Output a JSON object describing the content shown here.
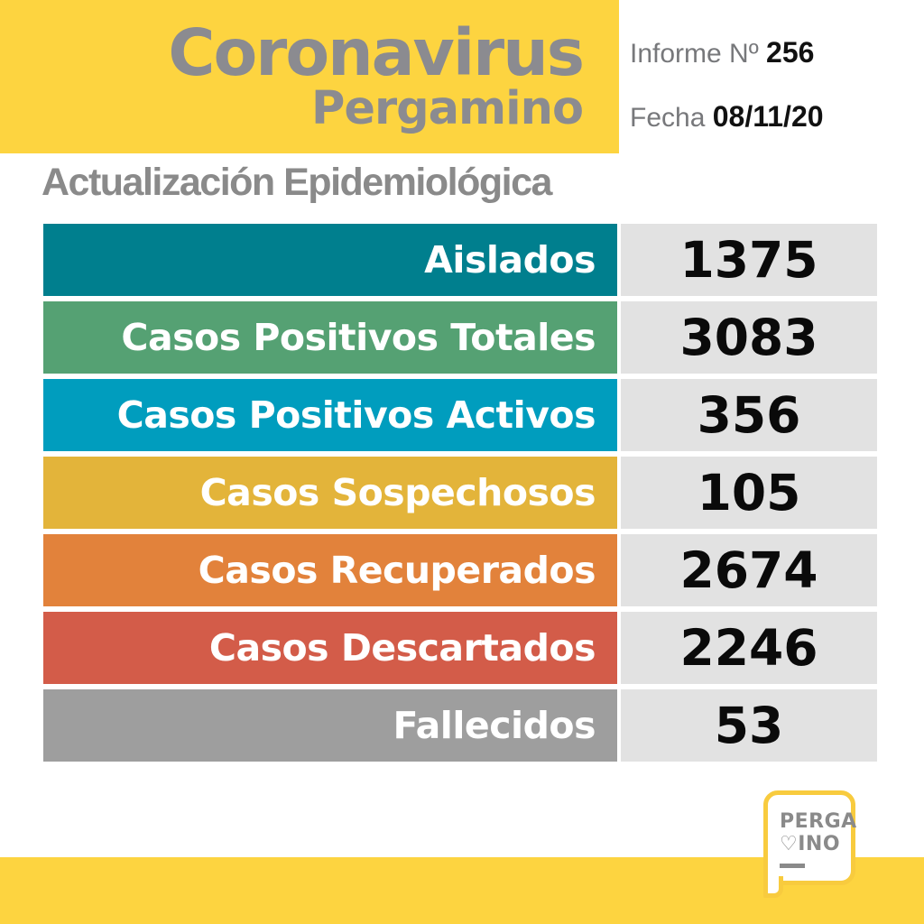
{
  "header": {
    "title_line1": "Coronavirus",
    "title_line2": "Pergamino",
    "report_label": "Informe Nº",
    "report_number": "256",
    "date_label": "Fecha",
    "date_value": "08/11/20"
  },
  "subtitle": "Actualización Epidemiológica",
  "table": {
    "rows": [
      {
        "label": "Aislados",
        "value": "1375",
        "color": "#007F8E"
      },
      {
        "label": "Casos Positivos Totales",
        "value": "3083",
        "color": "#55A173"
      },
      {
        "label": "Casos Positivos Activos",
        "value": "356",
        "color": "#009DBE"
      },
      {
        "label": "Casos Sospechosos",
        "value": "105",
        "color": "#E3B43A"
      },
      {
        "label": "Casos Recuperados",
        "value": "2674",
        "color": "#E2823B"
      },
      {
        "label": "Casos Descartados",
        "value": "2246",
        "color": "#D35C49"
      },
      {
        "label": "Fallecidos",
        "value": "53",
        "color": "#9E9E9E"
      }
    ],
    "value_background": "#E2E2E2"
  },
  "footer": {
    "logo_line1": "PERGA",
    "logo_heart": "♡",
    "logo_line2_rest": "INO"
  },
  "colors": {
    "brand_yellow": "#FDD440",
    "logo_border_yellow": "#F8CB3E",
    "title_gray": "#8B8B90",
    "subtitle_gray": "#8A8A8A",
    "info_label_gray": "#77787B",
    "value_text_black": "#0A0A0A",
    "bar_text_white": "#FFFFFF"
  },
  "chart_data": {
    "type": "table",
    "title": "Actualización Epidemiológica",
    "subtitle": "Coronavirus Pergamino",
    "report_number": 256,
    "date": "08/11/20",
    "categories": [
      "Aislados",
      "Casos Positivos Totales",
      "Casos Positivos Activos",
      "Casos Sospechosos",
      "Casos Recuperados",
      "Casos Descartados",
      "Fallecidos"
    ],
    "values": [
      1375,
      3083,
      356,
      105,
      2674,
      2246,
      53
    ]
  }
}
